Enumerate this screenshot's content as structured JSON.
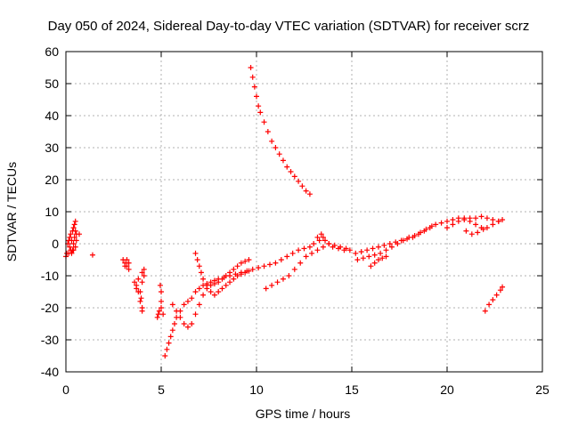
{
  "chart_data": {
    "type": "scatter",
    "title": "Day 050 of 2024, Sidereal Day-to-day VTEC variation (SDTVAR) for receiver scrz",
    "xlabel": "GPS time / hours",
    "ylabel": "SDTVAR / TECUs",
    "xlim": [
      0,
      25
    ],
    "ylim": [
      -40,
      60
    ],
    "xticks": [
      0,
      5,
      10,
      15,
      20,
      25
    ],
    "yticks": [
      -40,
      -30,
      -20,
      -10,
      0,
      10,
      20,
      30,
      40,
      50,
      60
    ],
    "grid": true,
    "marker": "+",
    "color": "#ff0000",
    "series": [
      {
        "name": "arc-early",
        "points": [
          [
            0.0,
            -4
          ],
          [
            0.05,
            -3
          ],
          [
            0.1,
            0
          ],
          [
            0.15,
            1
          ],
          [
            0.2,
            2
          ],
          [
            0.25,
            3
          ],
          [
            0.3,
            1
          ],
          [
            0.35,
            4
          ],
          [
            0.4,
            5
          ],
          [
            0.45,
            6
          ],
          [
            0.5,
            7
          ],
          [
            0.5,
            4
          ],
          [
            0.45,
            2
          ],
          [
            0.4,
            0
          ],
          [
            0.35,
            -2
          ],
          [
            0.3,
            -3
          ],
          [
            0.4,
            -2
          ],
          [
            0.5,
            -1
          ],
          [
            0.55,
            1
          ],
          [
            0.55,
            3
          ],
          [
            0.7,
            3
          ],
          [
            0.2,
            -1
          ],
          [
            0.25,
            -2
          ],
          [
            0.15,
            -3
          ]
        ]
      },
      {
        "name": "isolated-1",
        "points": [
          [
            1.4,
            -3.5
          ]
        ]
      },
      {
        "name": "arc-3h",
        "points": [
          [
            3.0,
            -5
          ],
          [
            3.1,
            -6
          ],
          [
            3.2,
            -7
          ],
          [
            3.3,
            -8
          ],
          [
            3.2,
            -5
          ],
          [
            3.1,
            -7
          ],
          [
            3.3,
            -6
          ]
        ]
      },
      {
        "name": "arc-3.6h",
        "points": [
          [
            3.6,
            -12
          ],
          [
            3.7,
            -13
          ],
          [
            3.8,
            -15
          ],
          [
            3.9,
            -18
          ],
          [
            4.0,
            -21
          ],
          [
            4.0,
            -20
          ],
          [
            3.95,
            -17
          ],
          [
            3.9,
            -15
          ],
          [
            4.0,
            -12
          ],
          [
            4.1,
            -10
          ],
          [
            4.1,
            -8
          ],
          [
            4.0,
            -9
          ],
          [
            3.8,
            -11
          ],
          [
            3.7,
            -14
          ]
        ]
      },
      {
        "name": "arc-4.9h",
        "points": [
          [
            4.8,
            -23
          ],
          [
            4.9,
            -21
          ],
          [
            5.0,
            -18
          ],
          [
            5.0,
            -15
          ],
          [
            4.95,
            -13
          ],
          [
            5.0,
            -20
          ],
          [
            5.1,
            -22
          ],
          [
            4.85,
            -22
          ]
        ]
      },
      {
        "name": "arc-descending",
        "points": [
          [
            9.7,
            55
          ],
          [
            9.8,
            52
          ],
          [
            9.9,
            49
          ],
          [
            10.0,
            46
          ],
          [
            10.1,
            43
          ],
          [
            10.2,
            41
          ],
          [
            10.4,
            38
          ],
          [
            10.6,
            35
          ],
          [
            10.8,
            32
          ],
          [
            11.0,
            30
          ],
          [
            11.2,
            28
          ],
          [
            11.4,
            26
          ],
          [
            11.6,
            24
          ],
          [
            11.8,
            22.5
          ],
          [
            12.0,
            21
          ],
          [
            12.2,
            19.5
          ],
          [
            12.4,
            18
          ],
          [
            12.6,
            16.5
          ],
          [
            12.8,
            15.5
          ]
        ]
      },
      {
        "name": "arc-rising-1",
        "points": [
          [
            5.2,
            -35
          ],
          [
            5.3,
            -33
          ],
          [
            5.4,
            -31
          ],
          [
            5.5,
            -29
          ],
          [
            5.6,
            -27
          ],
          [
            5.7,
            -25
          ],
          [
            5.8,
            -23
          ],
          [
            6.0,
            -21
          ],
          [
            6.2,
            -19
          ],
          [
            6.4,
            -18
          ],
          [
            6.6,
            -17
          ],
          [
            6.8,
            -15
          ],
          [
            7.0,
            -14
          ],
          [
            7.2,
            -13
          ],
          [
            7.4,
            -12.5
          ],
          [
            7.6,
            -12
          ],
          [
            7.8,
            -11.5
          ],
          [
            8.0,
            -11
          ],
          [
            8.3,
            -10.5
          ],
          [
            8.6,
            -10
          ],
          [
            8.9,
            -9.5
          ],
          [
            9.2,
            -9
          ],
          [
            9.5,
            -8.5
          ],
          [
            9.8,
            -8
          ],
          [
            10.1,
            -7.5
          ],
          [
            10.4,
            -7
          ],
          [
            10.7,
            -6.5
          ],
          [
            11.0,
            -6
          ],
          [
            11.3,
            -5
          ],
          [
            11.6,
            -4
          ],
          [
            11.9,
            -3
          ],
          [
            12.2,
            -2
          ],
          [
            12.5,
            -1.5
          ],
          [
            12.8,
            -1
          ],
          [
            13.0,
            0
          ],
          [
            13.2,
            2
          ],
          [
            13.4,
            3
          ],
          [
            13.6,
            1
          ],
          [
            13.8,
            0
          ],
          [
            14.0,
            -1
          ],
          [
            14.3,
            -1.5
          ],
          [
            14.6,
            -2
          ],
          [
            14.9,
            -2
          ]
        ]
      },
      {
        "name": "arc-rising-2",
        "points": [
          [
            5.6,
            -19
          ],
          [
            5.8,
            -21
          ],
          [
            6.0,
            -23
          ],
          [
            6.2,
            -25
          ],
          [
            6.4,
            -26
          ],
          [
            6.6,
            -25
          ],
          [
            6.8,
            -22
          ],
          [
            7.0,
            -19
          ],
          [
            7.2,
            -16
          ],
          [
            7.4,
            -14
          ],
          [
            7.6,
            -13
          ],
          [
            7.8,
            -12.5
          ],
          [
            8.0,
            -12
          ],
          [
            8.2,
            -11
          ],
          [
            8.4,
            -10
          ],
          [
            8.6,
            -9
          ],
          [
            8.8,
            -8
          ],
          [
            9.0,
            -7
          ],
          [
            9.2,
            -6
          ],
          [
            9.4,
            -5.5
          ],
          [
            9.6,
            -5
          ]
        ]
      },
      {
        "name": "arc-rising-3",
        "points": [
          [
            6.8,
            -3
          ],
          [
            6.9,
            -5
          ],
          [
            7.0,
            -7
          ],
          [
            7.1,
            -9
          ],
          [
            7.2,
            -11
          ],
          [
            7.4,
            -13
          ],
          [
            7.6,
            -15
          ],
          [
            7.8,
            -16
          ],
          [
            8.0,
            -15
          ],
          [
            8.2,
            -14
          ],
          [
            8.4,
            -13
          ],
          [
            8.6,
            -12
          ],
          [
            8.8,
            -11
          ],
          [
            9.0,
            -10
          ],
          [
            9.2,
            -9.5
          ],
          [
            9.4,
            -9
          ],
          [
            9.6,
            -8.5
          ]
        ]
      },
      {
        "name": "arc-rising-4",
        "points": [
          [
            10.5,
            -14
          ],
          [
            10.8,
            -13
          ],
          [
            11.1,
            -12
          ],
          [
            11.4,
            -11
          ],
          [
            11.7,
            -10
          ],
          [
            12.0,
            -8
          ],
          [
            12.3,
            -6
          ],
          [
            12.6,
            -4
          ],
          [
            12.9,
            -3
          ],
          [
            13.2,
            -2
          ],
          [
            13.5,
            -1
          ]
        ]
      },
      {
        "name": "arc-late-1",
        "points": [
          [
            15.2,
            -3
          ],
          [
            15.5,
            -2.5
          ],
          [
            15.8,
            -2
          ],
          [
            16.1,
            -1.5
          ],
          [
            16.4,
            -1
          ],
          [
            16.7,
            -0.5
          ],
          [
            17.0,
            0
          ],
          [
            17.3,
            0.5
          ],
          [
            17.6,
            1
          ],
          [
            17.9,
            1.5
          ],
          [
            18.2,
            2
          ],
          [
            18.5,
            3
          ],
          [
            18.8,
            4
          ],
          [
            19.1,
            5
          ],
          [
            19.4,
            6
          ],
          [
            19.7,
            6.5
          ],
          [
            20.0,
            7
          ],
          [
            20.3,
            7.5
          ],
          [
            20.6,
            8
          ],
          [
            20.9,
            8
          ],
          [
            21.2,
            8
          ],
          [
            21.5,
            8
          ],
          [
            21.8,
            8.5
          ],
          [
            22.1,
            8
          ],
          [
            22.4,
            7.5
          ],
          [
            22.7,
            7
          ]
        ]
      },
      {
        "name": "arc-late-2",
        "points": [
          [
            15.3,
            -5
          ],
          [
            15.6,
            -4.5
          ],
          [
            15.9,
            -4
          ],
          [
            16.2,
            -3.5
          ],
          [
            16.5,
            -3
          ],
          [
            16.8,
            -2
          ],
          [
            17.1,
            -1
          ],
          [
            17.4,
            0
          ],
          [
            17.7,
            1
          ],
          [
            18.0,
            2
          ],
          [
            18.3,
            2.5
          ],
          [
            18.6,
            3.5
          ],
          [
            18.9,
            4.5
          ],
          [
            19.2,
            5.5
          ]
        ]
      },
      {
        "name": "arc-late-3",
        "points": [
          [
            16.0,
            -7
          ],
          [
            16.2,
            -6
          ],
          [
            16.4,
            -5
          ],
          [
            16.6,
            -4.5
          ],
          [
            16.8,
            -4
          ]
        ]
      },
      {
        "name": "arc-late-4",
        "points": [
          [
            20.0,
            5
          ],
          [
            20.3,
            6
          ],
          [
            20.6,
            7
          ],
          [
            20.9,
            7.5
          ],
          [
            21.2,
            7
          ],
          [
            21.5,
            6
          ],
          [
            21.8,
            5
          ],
          [
            22.1,
            5
          ],
          [
            22.4,
            6
          ],
          [
            22.7,
            7
          ],
          [
            22.9,
            7.5
          ],
          [
            21.0,
            4
          ],
          [
            21.3,
            3
          ],
          [
            21.6,
            3.5
          ],
          [
            21.9,
            4.5
          ]
        ]
      },
      {
        "name": "arc-late-5",
        "points": [
          [
            22.0,
            -21
          ],
          [
            22.2,
            -19
          ],
          [
            22.4,
            -17.5
          ],
          [
            22.6,
            -16
          ],
          [
            22.8,
            -14.5
          ],
          [
            22.9,
            -13.5
          ]
        ]
      },
      {
        "name": "arc-late-6",
        "points": [
          [
            13.8,
            0
          ],
          [
            14.1,
            -0.5
          ],
          [
            14.4,
            -1
          ],
          [
            14.7,
            -1.5
          ],
          [
            13.5,
            2
          ],
          [
            13.3,
            1
          ]
        ]
      }
    ]
  }
}
